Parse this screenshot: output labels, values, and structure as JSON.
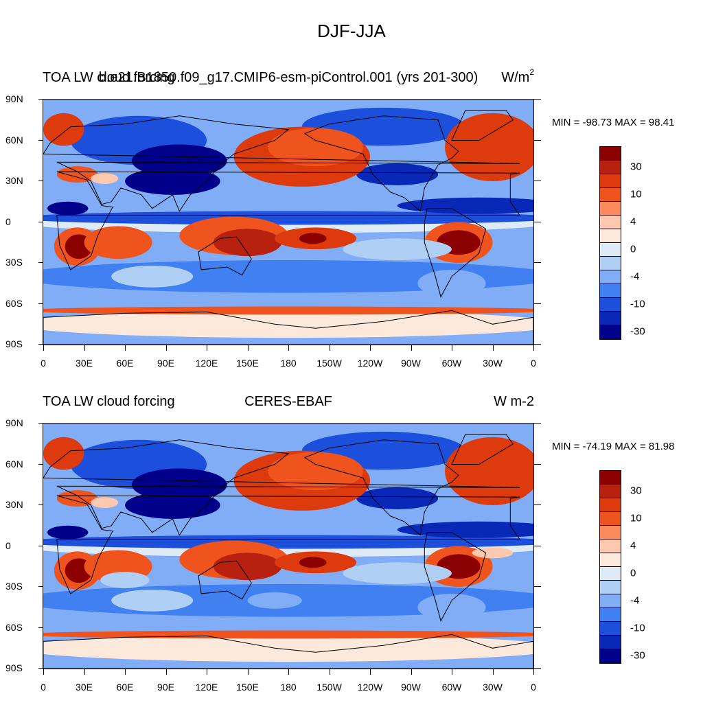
{
  "main_title": "DJF-JJA",
  "colorbar": {
    "colors": [
      "#8b0000",
      "#b82010",
      "#dd3a0e",
      "#f0541e",
      "#fb8a5c",
      "#fdc8b0",
      "#fde9dc",
      "#deebf7",
      "#b0cff5",
      "#80adf5",
      "#4080f0",
      "#1c4fdb",
      "#0a28b8",
      "#00008b"
    ],
    "labels": [
      "30",
      "10",
      "4",
      "0",
      "-4",
      "-10",
      "-30"
    ]
  },
  "axes": {
    "lat_labels": [
      "90N",
      "60N",
      "30N",
      "0",
      "30S",
      "60S",
      "90S"
    ],
    "lon_labels": [
      "0",
      "30E",
      "60E",
      "90E",
      "120E",
      "150E",
      "180",
      "150W",
      "120W",
      "90W",
      "60W",
      "30W",
      "0"
    ]
  },
  "panels": [
    {
      "left_title": "TOA LW cloud forcing",
      "center_title": "b.e21.B1850.f09_g17.CMIP6-esm-piControl.001 (yrs 201-300)",
      "right_title": "W/m",
      "right_title_sup": "2",
      "min_max": "MIN = -98.73 MAX =  98.41"
    },
    {
      "left_title": "TOA LW cloud forcing",
      "center_title": "CERES-EBAF",
      "right_title": "W m-2",
      "right_title_sup": "",
      "min_max": "MIN = -74.19 MAX =  81.98"
    }
  ]
}
